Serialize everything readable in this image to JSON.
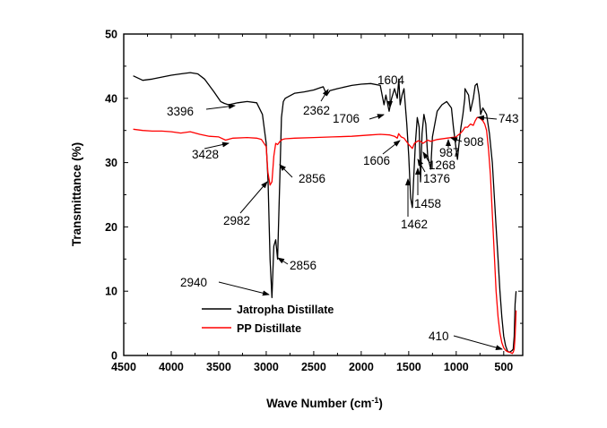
{
  "chart_data": {
    "type": "line",
    "xlabel": "Wave Number (cm",
    "xlabel_sup": "-1",
    "xlabel_tail": ")",
    "ylabel": "Transmittance (%)",
    "xlim": [
      4500,
      300
    ],
    "ylim": [
      0,
      50
    ],
    "x_ticks": [
      4500,
      4000,
      3500,
      3000,
      2500,
      2000,
      1500,
      1000,
      500
    ],
    "y_ticks": [
      0,
      10,
      20,
      30,
      40,
      50
    ],
    "x_reversed": true,
    "legend": "bottom-left",
    "series": [
      {
        "name": "Jatropha Distillate",
        "color": "#000000",
        "x": [
          4400,
          4300,
          4200,
          4100,
          4000,
          3900,
          3800,
          3720,
          3650,
          3550,
          3480,
          3440,
          3396,
          3300,
          3200,
          3100,
          3040,
          3000,
          2980,
          2960,
          2940,
          2920,
          2900,
          2880,
          2856,
          2840,
          2820,
          2800,
          2700,
          2600,
          2500,
          2440,
          2400,
          2362,
          2330,
          2250,
          2100,
          2000,
          1900,
          1800,
          1760,
          1740,
          1706,
          1680,
          1650,
          1620,
          1604,
          1590,
          1570,
          1550,
          1520,
          1500,
          1480,
          1462,
          1450,
          1430,
          1410,
          1390,
          1376,
          1360,
          1340,
          1320,
          1300,
          1268,
          1250,
          1200,
          1150,
          1100,
          1050,
          1030,
          1000,
          987,
          970,
          950,
          930,
          910,
          908,
          890,
          870,
          850,
          820,
          800,
          780,
          760,
          743,
          720,
          700,
          680,
          650,
          620,
          600,
          580,
          560,
          540,
          520,
          500,
          480,
          460,
          440,
          420,
          410,
          400,
          390,
          380,
          370
        ],
        "values": [
          43.5,
          42.8,
          43.0,
          43.3,
          43.6,
          43.8,
          44.0,
          43.8,
          43.0,
          41.0,
          39.5,
          39.2,
          39.0,
          39.3,
          39.5,
          39.3,
          37.5,
          33.0,
          27.0,
          15.0,
          9.0,
          17.0,
          18.0,
          15.0,
          28.0,
          37.0,
          39.5,
          40.0,
          40.8,
          41.0,
          41.3,
          41.6,
          41.8,
          40.5,
          41.2,
          41.5,
          42.0,
          42.2,
          42.3,
          42.0,
          39.0,
          40.5,
          38.0,
          40.0,
          41.5,
          40.0,
          43.0,
          39.0,
          40.5,
          41.5,
          36.0,
          31.0,
          24.5,
          23.0,
          27.0,
          33.0,
          37.0,
          35.5,
          27.0,
          34.5,
          37.5,
          36.0,
          31.0,
          29.0,
          34.0,
          38.0,
          39.0,
          39.5,
          38.5,
          35.5,
          32.0,
          30.5,
          33.0,
          35.5,
          37.5,
          40.0,
          41.5,
          41.0,
          40.5,
          38.0,
          40.0,
          42.0,
          42.3,
          40.5,
          37.5,
          38.5,
          38.0,
          37.5,
          34.5,
          30.0,
          25.0,
          20.0,
          15.0,
          10.0,
          6.0,
          3.0,
          1.5,
          0.7,
          0.5,
          0.7,
          0.8,
          1.0,
          3.0,
          8.0,
          10.0
        ]
      },
      {
        "name": "PP Distillate",
        "color": "#ff0000",
        "x": [
          4400,
          4300,
          4200,
          4100,
          4000,
          3900,
          3800,
          3700,
          3600,
          3500,
          3428,
          3350,
          3200,
          3100,
          3050,
          3000,
          2982,
          2960,
          2940,
          2920,
          2900,
          2880,
          2856,
          2830,
          2800,
          2700,
          2500,
          2300,
          2100,
          1900,
          1800,
          1700,
          1650,
          1620,
          1606,
          1580,
          1550,
          1500,
          1480,
          1462,
          1440,
          1400,
          1376,
          1350,
          1300,
          1268,
          1200,
          1100,
          1000,
          987,
          960,
          930,
          908,
          880,
          850,
          820,
          800,
          780,
          760,
          743,
          720,
          700,
          680,
          660,
          640,
          620,
          600,
          580,
          560,
          540,
          520,
          500,
          480,
          460,
          440,
          420,
          410,
          400,
          390,
          380,
          370
        ],
        "values": [
          35.2,
          35.0,
          34.9,
          34.9,
          34.8,
          34.6,
          34.8,
          34.4,
          34.1,
          34.0,
          33.5,
          33.8,
          33.9,
          33.8,
          33.6,
          32.5,
          28.5,
          26.5,
          27.0,
          31.0,
          33.0,
          32.8,
          33.3,
          33.6,
          33.7,
          33.8,
          33.9,
          34.0,
          34.1,
          34.3,
          34.4,
          34.3,
          34.1,
          33.8,
          34.5,
          34.0,
          33.8,
          32.8,
          32.5,
          32.2,
          33.0,
          33.4,
          33.3,
          33.0,
          33.5,
          33.3,
          33.6,
          33.8,
          34.0,
          34.2,
          34.5,
          35.0,
          35.5,
          35.5,
          36.0,
          35.8,
          36.5,
          37.0,
          37.0,
          36.8,
          36.5,
          36.0,
          35.0,
          32.0,
          28.0,
          22.0,
          16.0,
          10.0,
          6.0,
          3.5,
          2.0,
          1.2,
          0.8,
          0.6,
          0.5,
          0.4,
          0.3,
          0.5,
          1.0,
          3.0,
          7.0
        ]
      }
    ],
    "annotations": [
      {
        "text": "3396",
        "color": "#000000"
      },
      {
        "text": "2362",
        "color": "#000000"
      },
      {
        "text": "1604",
        "color": "#000000"
      },
      {
        "text": "1706",
        "color": "#000000"
      },
      {
        "text": "743",
        "color": "#000000"
      },
      {
        "text": "3428",
        "color": "#000000"
      },
      {
        "text": "1606",
        "color": "#000000"
      },
      {
        "text": "987",
        "color": "#000000"
      },
      {
        "text": "908",
        "color": "#000000"
      },
      {
        "text": "1268",
        "color": "#000000"
      },
      {
        "text": "1376",
        "color": "#000000"
      },
      {
        "text": "1458",
        "color": "#000000"
      },
      {
        "text": "1462",
        "color": "#000000"
      },
      {
        "text": "2856",
        "color": "#000000"
      },
      {
        "text": "2982",
        "color": "#000000"
      },
      {
        "text": "2856",
        "color": "#000000"
      },
      {
        "text": "2940",
        "color": "#000000"
      },
      {
        "text": "410",
        "color": "#000000"
      }
    ]
  }
}
